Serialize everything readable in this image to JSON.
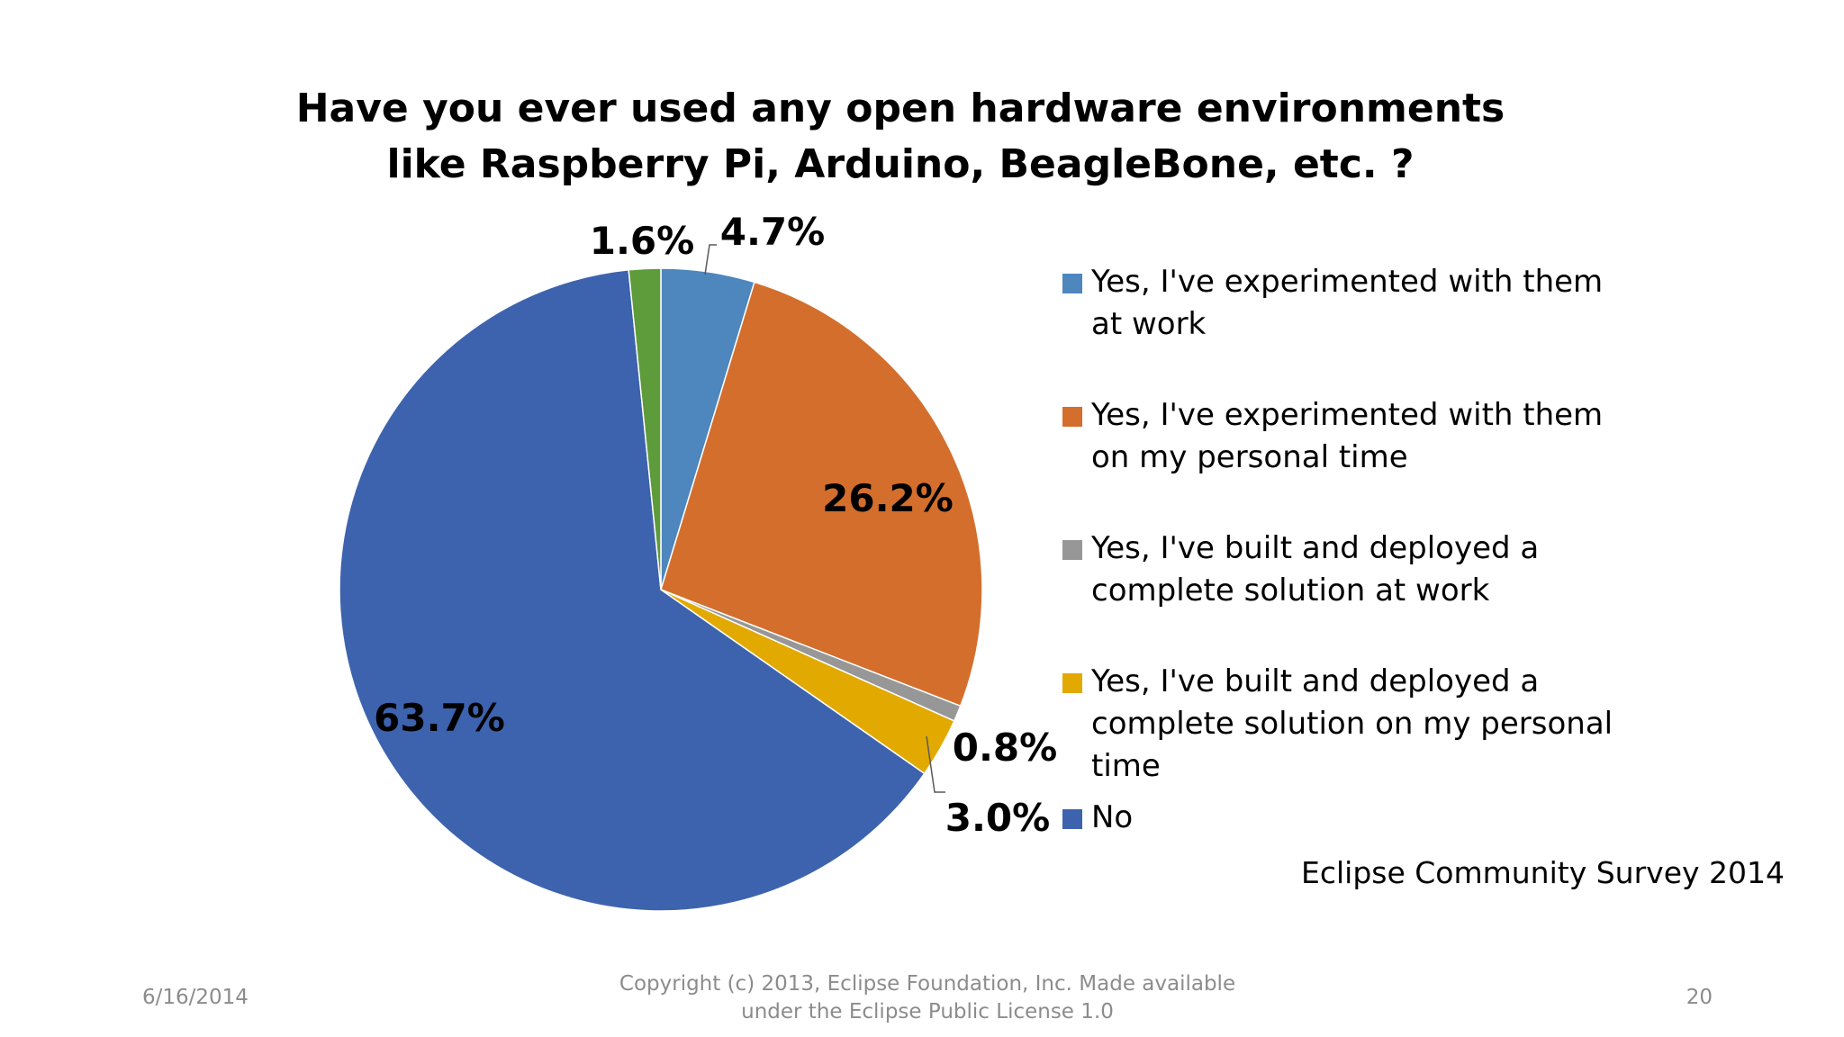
{
  "chart_data": {
    "type": "pie",
    "title": "Have you ever used any open hardware environments like Raspberry Pi, Arduino, BeagleBone, etc. ?",
    "categories": [
      "Yes, I've experimented with them at work",
      "Yes, I've experimented with them on my personal time",
      "Yes, I've built and deployed a complete solution at work",
      "Yes, I've built and deployed a complete solution on my personal time",
      "No",
      ""
    ],
    "values": [
      4.7,
      26.2,
      0.8,
      3.0,
      63.7,
      1.6
    ],
    "labels": [
      "4.7%",
      "26.2%",
      "0.8%",
      "3.0%",
      "63.7%",
      "1.6%"
    ],
    "colors": [
      "#4E86BE",
      "#D36E2D",
      "#979797",
      "#E2A900",
      "#3D63AE",
      "#5E9B3A"
    ],
    "legend_position": "right"
  },
  "source_note": "Eclipse Community Survey 2014",
  "footer": {
    "date": "6/16/2014",
    "copyright_line1": "Copyright (c) 2013, Eclipse Foundation, Inc. Made available",
    "copyright_line2": "under the Eclipse Public License 1.0",
    "page_number": "20"
  }
}
